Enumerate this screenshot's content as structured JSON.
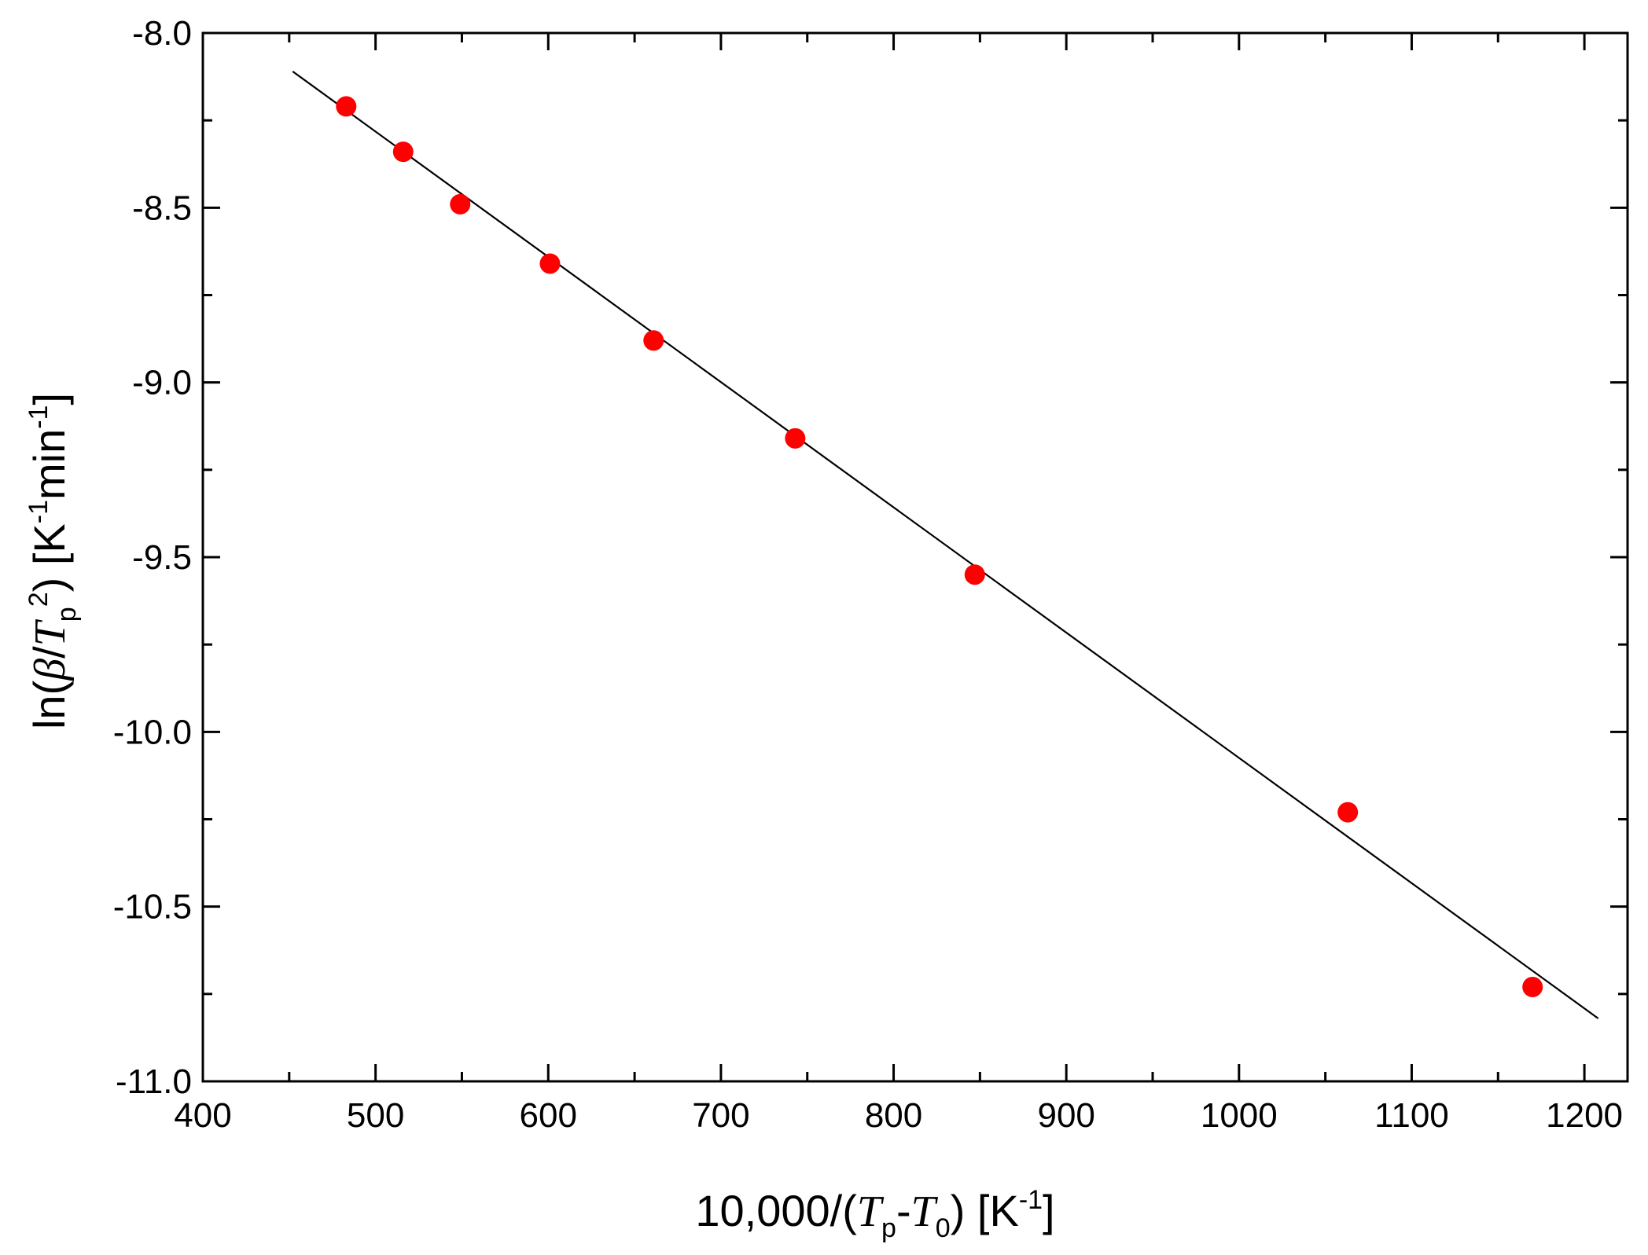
{
  "chart_data": {
    "type": "scatter",
    "title": "",
    "xlim": [
      400,
      1225
    ],
    "ylim": [
      -11.0,
      -8.0
    ],
    "x_ticks": [
      {
        "value": 400,
        "label": "400"
      },
      {
        "value": 500,
        "label": "500"
      },
      {
        "value": 600,
        "label": "600"
      },
      {
        "value": 700,
        "label": "700"
      },
      {
        "value": 800,
        "label": "800"
      },
      {
        "value": 900,
        "label": "900"
      },
      {
        "value": 1000,
        "label": "1000"
      },
      {
        "value": 1100,
        "label": "1100"
      },
      {
        "value": 1200,
        "label": "1200"
      }
    ],
    "y_ticks": [
      {
        "value": -8.0,
        "label": "-8.0"
      },
      {
        "value": -8.5,
        "label": "-8.5"
      },
      {
        "value": -9.0,
        "label": "-9.0"
      },
      {
        "value": -9.5,
        "label": "-9.5"
      },
      {
        "value": -10.0,
        "label": "-10.0"
      },
      {
        "value": -10.5,
        "label": "-10.5"
      },
      {
        "value": -11.0,
        "label": "-11.0"
      }
    ],
    "x_minor_ticks": [
      450,
      550,
      650,
      750,
      850,
      950,
      1050,
      1150
    ],
    "y_minor_ticks": [
      -8.25,
      -8.75,
      -9.25,
      -9.75,
      -10.25,
      -10.75
    ],
    "grid": false,
    "series": [
      {
        "marker": "circle",
        "color": "#ff0000",
        "points": [
          {
            "x": 483,
            "y": -8.21
          },
          {
            "x": 516,
            "y": -8.34
          },
          {
            "x": 549,
            "y": -8.49
          },
          {
            "x": 601,
            "y": -8.66
          },
          {
            "x": 661,
            "y": -8.88
          },
          {
            "x": 743,
            "y": -9.16
          },
          {
            "x": 847,
            "y": -9.55
          },
          {
            "x": 1063,
            "y": -10.23
          },
          {
            "x": 1170,
            "y": -10.73
          }
        ]
      }
    ],
    "fit_line": {
      "color": "#000000",
      "from": {
        "x": 452,
        "y": -8.11
      },
      "to": {
        "x": 1208,
        "y": -10.82
      }
    }
  }
}
